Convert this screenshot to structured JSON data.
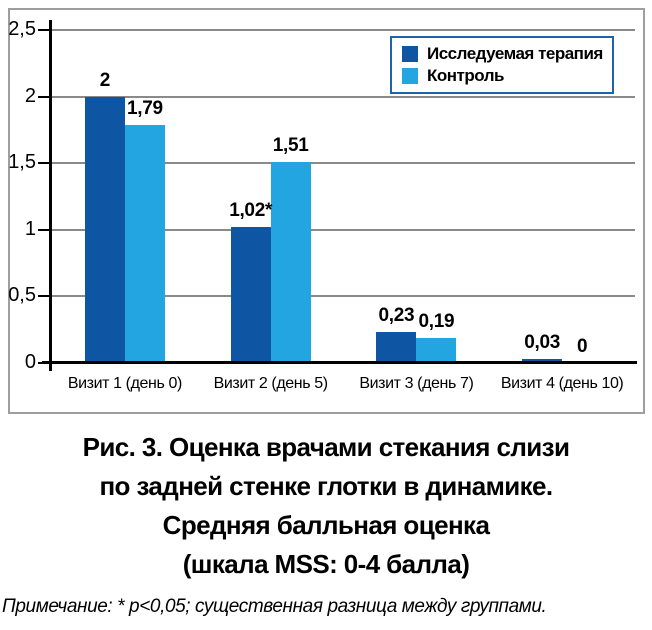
{
  "chart_data": {
    "type": "bar",
    "categories": [
      "Визит 1 (день 0)",
      "Визит 2 (день 5)",
      "Визит 3 (день 7)",
      "Визит 4 (день 10)"
    ],
    "series": [
      {
        "name": "Исследуемая терапия",
        "color": "#0e55a4",
        "values": [
          2,
          1.02,
          0.23,
          0.03
        ],
        "labels": [
          "2",
          "1,02*",
          "0,23",
          "0,03"
        ]
      },
      {
        "name": "Контроль",
        "color": "#23a5e2",
        "values": [
          1.79,
          1.51,
          0.19,
          0
        ],
        "labels": [
          "1,79",
          "1,51",
          "0,19",
          "0"
        ]
      }
    ],
    "ylim": [
      0,
      2.5
    ],
    "yticks": [
      0,
      0.5,
      1,
      1.5,
      2,
      2.5
    ],
    "ytick_labels": [
      "0",
      "0,5",
      "1",
      "1,5",
      "2",
      "2,5"
    ],
    "xlabel": "",
    "ylabel": "",
    "grid": true,
    "legend_position": "top-right"
  },
  "caption": {
    "lines": [
      "Рис. 3. Оценка врачами стекания слизи",
      "по задней стенке глотки в динамике.",
      "Средняя балльная оценка",
      "(шкала MSS: 0-4 балла)"
    ]
  },
  "note": "Примечание: * p<0,05; существенная разница между группами.",
  "colors": {
    "series_primary": "#0e55a4",
    "series_control": "#23a5e2",
    "gridline": "#8a8a8a",
    "axis": "#000000",
    "frame_border": "#9e9e9e",
    "legend_border": "#1d63ae"
  }
}
